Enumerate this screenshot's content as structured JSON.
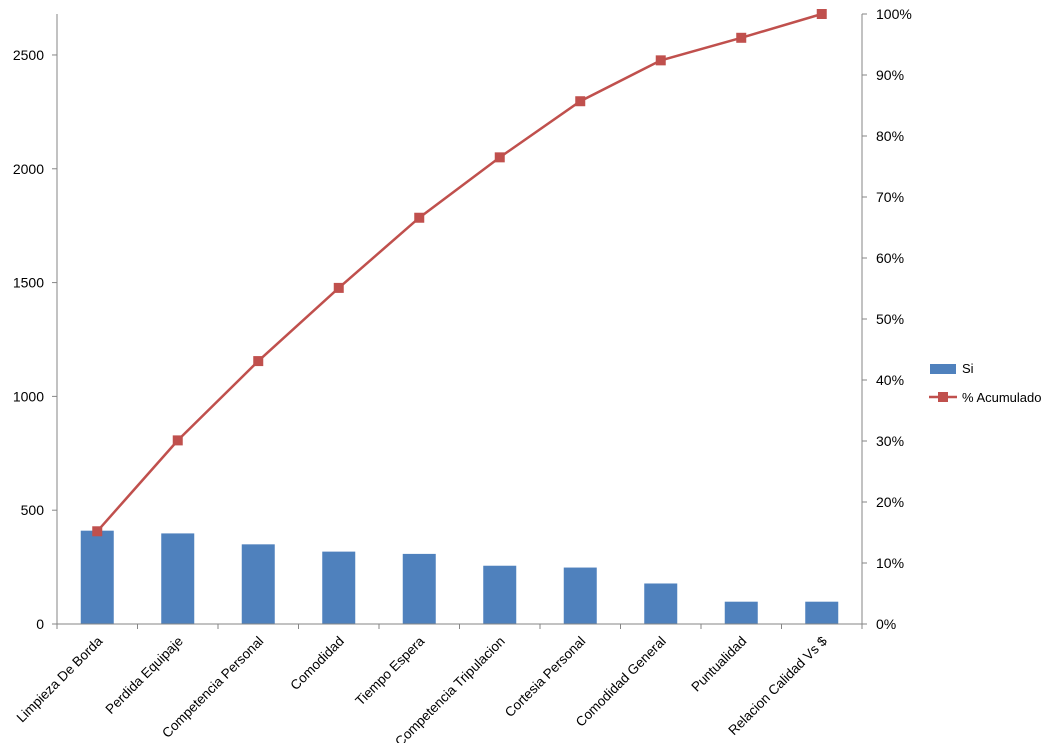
{
  "chart_data": {
    "type": "bar",
    "categories": [
      "Limpieza De Borda",
      "Perdida Equipaje",
      "Competencia Personal",
      "Comodidad",
      "Tiempo Espera",
      "Competencia Tripulacion",
      "Cortesia Personal",
      "Comodidad General",
      "Puntualidad",
      "Relacion Calidad Vs $"
    ],
    "series": [
      {
        "name": "Si",
        "type": "bar",
        "axis": "left",
        "color": "#4F81BD",
        "values": [
          410,
          398,
          350,
          318,
          308,
          256,
          248,
          178,
          98,
          98
        ]
      },
      {
        "name": "% Acumulado",
        "type": "line",
        "axis": "right",
        "color": "#C0504D",
        "marker": "square",
        "values": [
          15.2,
          30.1,
          43.1,
          55.1,
          66.6,
          76.5,
          85.7,
          92.4,
          96.1,
          100
        ]
      }
    ],
    "y_left": {
      "ylim": [
        0,
        2680
      ],
      "ticks": [
        0,
        500,
        1000,
        1500,
        2000,
        2500
      ]
    },
    "y_right": {
      "ylim": [
        0,
        100
      ],
      "ticks": [
        "0%",
        "10%",
        "20%",
        "30%",
        "40%",
        "50%",
        "60%",
        "70%",
        "80%",
        "90%",
        "100%"
      ]
    },
    "title": "",
    "xlabel": "",
    "ylabel": "",
    "legend": {
      "position": "right"
    },
    "grid": false
  }
}
